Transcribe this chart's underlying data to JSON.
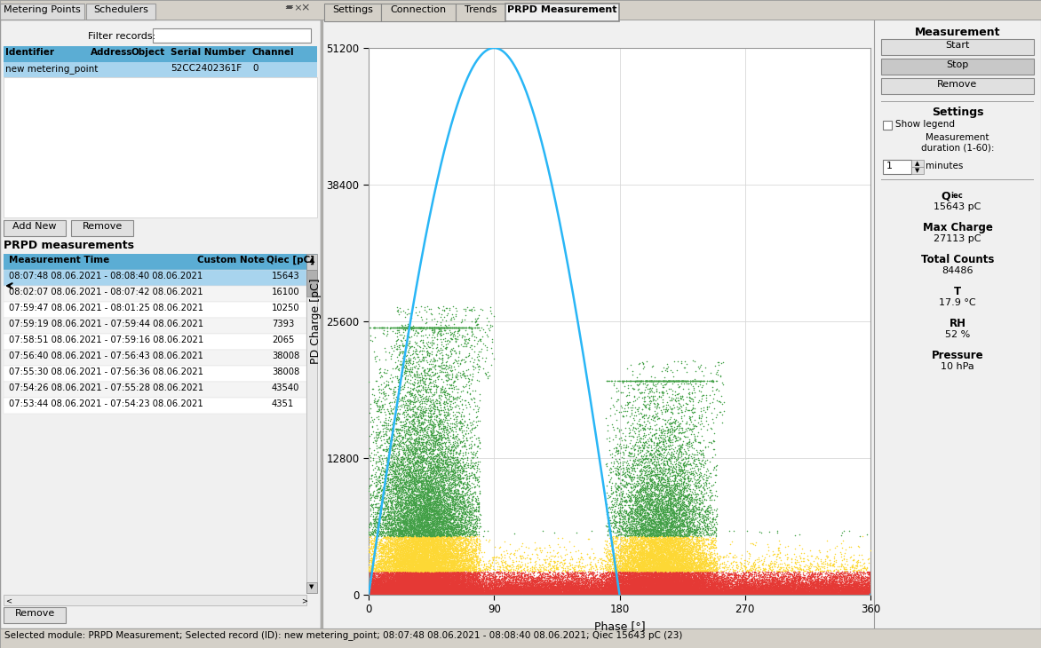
{
  "fig_width": 11.72,
  "fig_height": 7.3,
  "bg_color": "#d4d0c8",
  "panel_bg": "#f0f0f0",
  "tabs": [
    "Settings",
    "Connection",
    "Trends",
    "PRPD Measurement"
  ],
  "active_tab": "PRPD Measurement",
  "left_panel_tabs": [
    "Metering Points",
    "Schedulers"
  ],
  "table_headers": [
    "Identifier",
    "Address",
    "Object",
    "Serial Number",
    "Channel"
  ],
  "table_header_bg": "#5badd4",
  "table_row_selected_bg": "#a8d4ee",
  "prpd_headers": [
    "Measurement Time",
    "Custom Note",
    "Qiec [pC]"
  ],
  "prpd_rows": [
    [
      "08:07:48 08.06.2021 - 08:08:40 08.06.2021",
      "",
      "15643"
    ],
    [
      "08:02:07 08.06.2021 - 08:07:42 08.06.2021",
      "",
      "16100"
    ],
    [
      "07:59:47 08.06.2021 - 08:01:25 08.06.2021",
      "",
      "10250"
    ],
    [
      "07:59:19 08.06.2021 - 07:59:44 08.06.2021",
      "",
      "7393"
    ],
    [
      "07:58:51 08.06.2021 - 07:59:16 08.06.2021",
      "",
      "2065"
    ],
    [
      "07:56:40 08.06.2021 - 07:56:43 08.06.2021",
      "",
      "38008"
    ],
    [
      "07:55:30 08.06.2021 - 07:56:36 08.06.2021",
      "",
      "38008"
    ],
    [
      "07:54:26 08.06.2021 - 07:55:28 08.06.2021",
      "",
      "43540"
    ],
    [
      "07:53:44 08.06.2021 - 07:54:23 08.06.2021",
      "",
      "4351"
    ]
  ],
  "status_bar": "Selected module: PRPD Measurement; Selected record (ID): new metering_point; 08:07:48 08.06.2021 - 08:08:40 08.06.2021; Qiec 15643 pC (23)",
  "plot_xlim": [
    0,
    360
  ],
  "plot_ylim": [
    0,
    51200
  ],
  "plot_yticks": [
    0,
    12800,
    25600,
    38400,
    51200
  ],
  "plot_xticks": [
    0,
    90,
    180,
    270,
    360
  ],
  "plot_xlabel": "Phase [°]",
  "plot_ylabel": "PD Charge [pC]",
  "sine_color": "#29b6f6",
  "sine_amplitude": 51200,
  "col_red": "#e53935",
  "col_yellow": "#fdd835",
  "col_green": "#43a047"
}
